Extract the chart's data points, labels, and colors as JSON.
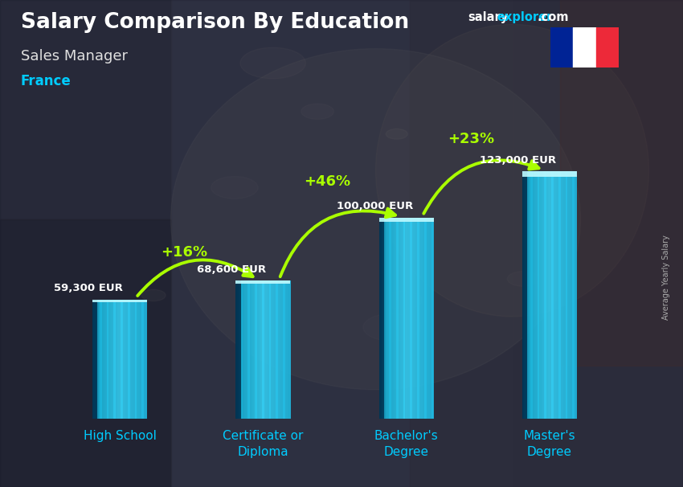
{
  "title": "Salary Comparison By Education",
  "subtitle": "Sales Manager",
  "country": "France",
  "ylabel": "Average Yearly Salary",
  "categories": [
    "High School",
    "Certificate or\nDiploma",
    "Bachelor's\nDegree",
    "Master's\nDegree"
  ],
  "values": [
    59300,
    68600,
    100000,
    123000
  ],
  "value_labels": [
    "59,300 EUR",
    "68,600 EUR",
    "100,000 EUR",
    "123,000 EUR"
  ],
  "pct_changes": [
    "+16%",
    "+46%",
    "+23%"
  ],
  "bar_color_left": "#1ab3d8",
  "bar_color_right": "#5de0ff",
  "bar_color_mid": "#35c8f0",
  "bar_edge_dark": "#0077aa",
  "background_color": "#3a3f52",
  "title_color": "#ffffff",
  "subtitle_color": "#e0e0e0",
  "country_color": "#00ccff",
  "value_label_color": "#ffffff",
  "pct_color": "#aaff00",
  "arrow_color": "#aaff00",
  "xlabels_color": "#00ccff",
  "ylim_max": 150000,
  "bar_width": 0.38,
  "brand_color_salary": "#ffffff",
  "brand_color_explorer": "#00ccff",
  "brand_color_com": "#ffffff"
}
